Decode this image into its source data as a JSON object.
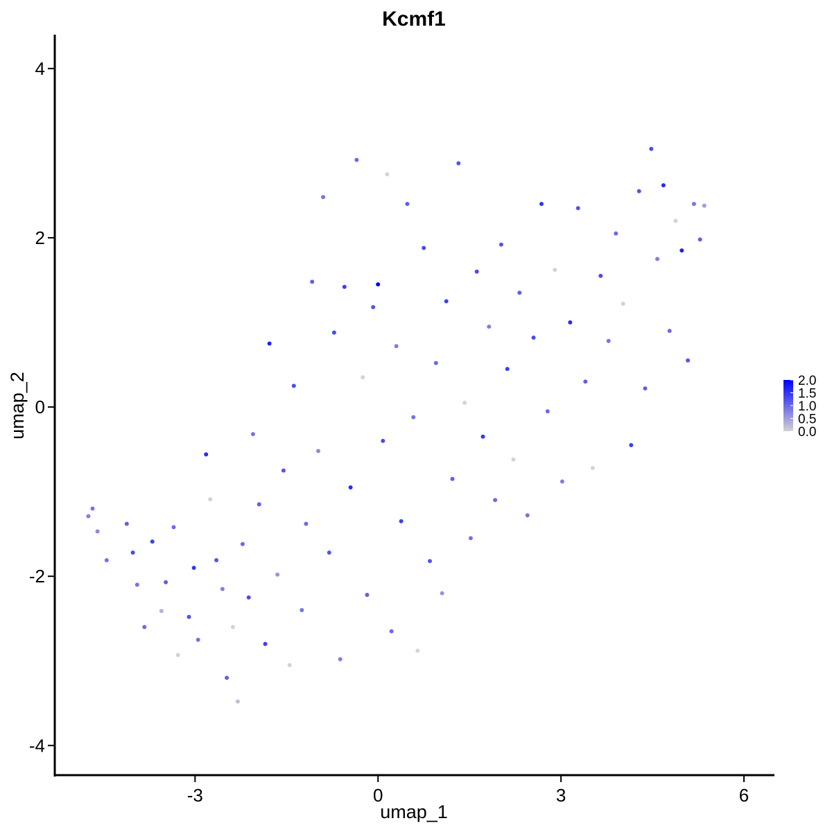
{
  "chart_data": {
    "type": "scatter",
    "title": "Kcmf1",
    "xlabel": "umap_1",
    "ylabel": "umap_2",
    "xlim": [
      -5.3,
      6.5
    ],
    "ylim": [
      -4.35,
      4.4
    ],
    "xticks": [
      -3,
      0,
      3,
      6
    ],
    "xtick_labels": [
      "-3",
      "0",
      "3",
      "6"
    ],
    "yticks": [
      -4,
      -2,
      0,
      2,
      4
    ],
    "ytick_labels": [
      "-4",
      "-2",
      "0",
      "2",
      "4"
    ],
    "grid": false,
    "legend_position": "right",
    "color_scale": {
      "min": 0.0,
      "max": 2.0,
      "low_color": "#d3d3d3",
      "high_color": "#0000ff",
      "labels": [
        "2.0",
        "1.5",
        "1.0",
        "0.5",
        "0.0"
      ],
      "values": [
        2.0,
        1.5,
        1.0,
        0.5,
        0.0
      ]
    },
    "points": [
      {
        "x": -4.75,
        "y": -1.29,
        "v": 0.8
      },
      {
        "x": -4.68,
        "y": -1.2,
        "v": 0.9
      },
      {
        "x": -4.6,
        "y": -1.47,
        "v": 0.7
      },
      {
        "x": -4.45,
        "y": -1.81,
        "v": 0.9
      },
      {
        "x": -4.12,
        "y": -1.38,
        "v": 1.1
      },
      {
        "x": -4.02,
        "y": -1.72,
        "v": 1.3
      },
      {
        "x": -3.95,
        "y": -2.1,
        "v": 0.9
      },
      {
        "x": -3.83,
        "y": -2.6,
        "v": 1.0
      },
      {
        "x": -3.7,
        "y": -1.59,
        "v": 1.4
      },
      {
        "x": -3.55,
        "y": -2.41,
        "v": 0.3
      },
      {
        "x": -3.48,
        "y": -2.07,
        "v": 1.1
      },
      {
        "x": -3.35,
        "y": -1.42,
        "v": 1.0
      },
      {
        "x": -3.28,
        "y": -2.93,
        "v": 0.0
      },
      {
        "x": -3.1,
        "y": -2.48,
        "v": 1.2
      },
      {
        "x": -3.02,
        "y": -1.9,
        "v": 1.5
      },
      {
        "x": -2.95,
        "y": -2.75,
        "v": 0.9
      },
      {
        "x": -2.82,
        "y": -0.56,
        "v": 1.6
      },
      {
        "x": -2.75,
        "y": -1.09,
        "v": 0.0
      },
      {
        "x": -2.65,
        "y": -1.81,
        "v": 1.2
      },
      {
        "x": -2.55,
        "y": -2.15,
        "v": 0.8
      },
      {
        "x": -2.48,
        "y": -3.2,
        "v": 1.1
      },
      {
        "x": -2.38,
        "y": -2.6,
        "v": 0.0
      },
      {
        "x": -2.3,
        "y": -3.48,
        "v": 0.2
      },
      {
        "x": -2.22,
        "y": -1.62,
        "v": 1.0
      },
      {
        "x": -2.12,
        "y": -2.25,
        "v": 1.3
      },
      {
        "x": -2.05,
        "y": -0.32,
        "v": 0.9
      },
      {
        "x": -1.95,
        "y": -1.15,
        "v": 1.1
      },
      {
        "x": -1.85,
        "y": -2.8,
        "v": 1.4
      },
      {
        "x": -1.78,
        "y": 0.75,
        "v": 1.7
      },
      {
        "x": -1.65,
        "y": -1.98,
        "v": 0.6
      },
      {
        "x": -1.55,
        "y": -0.75,
        "v": 1.2
      },
      {
        "x": -1.45,
        "y": -3.05,
        "v": 0.0
      },
      {
        "x": -1.38,
        "y": 0.25,
        "v": 1.3
      },
      {
        "x": -1.25,
        "y": -2.4,
        "v": 0.9
      },
      {
        "x": -1.18,
        "y": -1.38,
        "v": 1.0
      },
      {
        "x": -1.08,
        "y": 1.48,
        "v": 1.1
      },
      {
        "x": -0.98,
        "y": -0.52,
        "v": 0.7
      },
      {
        "x": -0.9,
        "y": 2.48,
        "v": 0.9
      },
      {
        "x": -0.8,
        "y": -1.72,
        "v": 1.2
      },
      {
        "x": -0.72,
        "y": 0.88,
        "v": 1.3
      },
      {
        "x": -0.62,
        "y": -2.98,
        "v": 0.8
      },
      {
        "x": -0.55,
        "y": 1.42,
        "v": 1.4
      },
      {
        "x": -0.45,
        "y": -0.95,
        "v": 1.6
      },
      {
        "x": -0.35,
        "y": 2.92,
        "v": 1.0
      },
      {
        "x": -0.25,
        "y": 0.35,
        "v": 0.0
      },
      {
        "x": -0.18,
        "y": -2.22,
        "v": 1.1
      },
      {
        "x": -0.08,
        "y": 1.18,
        "v": 1.2
      },
      {
        "x": 0.0,
        "y": 1.45,
        "v": 2.0
      },
      {
        "x": 0.08,
        "y": -0.4,
        "v": 1.3
      },
      {
        "x": 0.15,
        "y": 2.75,
        "v": 0.0
      },
      {
        "x": 0.22,
        "y": -2.65,
        "v": 1.0
      },
      {
        "x": 0.3,
        "y": 0.72,
        "v": 0.8
      },
      {
        "x": 0.38,
        "y": -1.35,
        "v": 1.4
      },
      {
        "x": 0.48,
        "y": 2.4,
        "v": 1.1
      },
      {
        "x": 0.58,
        "y": -0.12,
        "v": 0.9
      },
      {
        "x": 0.65,
        "y": -2.88,
        "v": 0.0
      },
      {
        "x": 0.75,
        "y": 1.88,
        "v": 1.3
      },
      {
        "x": 0.85,
        "y": -1.82,
        "v": 1.2
      },
      {
        "x": 0.95,
        "y": 0.52,
        "v": 1.0
      },
      {
        "x": 1.05,
        "y": -2.2,
        "v": 0.6
      },
      {
        "x": 1.12,
        "y": 1.25,
        "v": 1.4
      },
      {
        "x": 1.22,
        "y": -0.85,
        "v": 1.1
      },
      {
        "x": 1.32,
        "y": 2.88,
        "v": 1.2
      },
      {
        "x": 1.42,
        "y": 0.05,
        "v": 0.0
      },
      {
        "x": 1.52,
        "y": -1.55,
        "v": 0.9
      },
      {
        "x": 1.62,
        "y": 1.6,
        "v": 1.3
      },
      {
        "x": 1.72,
        "y": -0.35,
        "v": 1.5
      },
      {
        "x": 1.82,
        "y": 0.95,
        "v": 0.8
      },
      {
        "x": 1.92,
        "y": -1.1,
        "v": 1.0
      },
      {
        "x": 2.02,
        "y": 1.92,
        "v": 1.2
      },
      {
        "x": 2.12,
        "y": 0.45,
        "v": 1.4
      },
      {
        "x": 2.22,
        "y": -0.62,
        "v": 0.0
      },
      {
        "x": 2.32,
        "y": 1.35,
        "v": 1.1
      },
      {
        "x": 2.45,
        "y": -1.28,
        "v": 0.9
      },
      {
        "x": 2.55,
        "y": 0.82,
        "v": 1.3
      },
      {
        "x": 2.68,
        "y": 2.4,
        "v": 1.5
      },
      {
        "x": 2.78,
        "y": -0.05,
        "v": 1.0
      },
      {
        "x": 2.9,
        "y": 1.62,
        "v": 0.0
      },
      {
        "x": 3.02,
        "y": -0.88,
        "v": 0.8
      },
      {
        "x": 3.15,
        "y": 1.0,
        "v": 1.6
      },
      {
        "x": 3.28,
        "y": 2.35,
        "v": 1.2
      },
      {
        "x": 3.4,
        "y": 0.3,
        "v": 1.1
      },
      {
        "x": 3.52,
        "y": -0.72,
        "v": 0.0
      },
      {
        "x": 3.65,
        "y": 1.55,
        "v": 1.3
      },
      {
        "x": 3.78,
        "y": 0.78,
        "v": 0.9
      },
      {
        "x": 3.9,
        "y": 2.05,
        "v": 1.0
      },
      {
        "x": 4.02,
        "y": 1.22,
        "v": 0.0
      },
      {
        "x": 4.15,
        "y": -0.45,
        "v": 1.4
      },
      {
        "x": 4.28,
        "y": 2.55,
        "v": 1.2
      },
      {
        "x": 4.38,
        "y": 0.22,
        "v": 1.1
      },
      {
        "x": 4.48,
        "y": 3.05,
        "v": 1.3
      },
      {
        "x": 4.58,
        "y": 1.75,
        "v": 0.8
      },
      {
        "x": 4.68,
        "y": 2.62,
        "v": 1.6
      },
      {
        "x": 4.78,
        "y": 0.9,
        "v": 1.0
      },
      {
        "x": 4.88,
        "y": 2.2,
        "v": 0.0
      },
      {
        "x": 4.98,
        "y": 1.85,
        "v": 1.7
      },
      {
        "x": 5.08,
        "y": 0.55,
        "v": 1.2
      },
      {
        "x": 5.18,
        "y": 2.4,
        "v": 0.9
      },
      {
        "x": 5.28,
        "y": 1.98,
        "v": 1.1
      },
      {
        "x": 5.35,
        "y": 2.38,
        "v": 0.5
      }
    ]
  }
}
